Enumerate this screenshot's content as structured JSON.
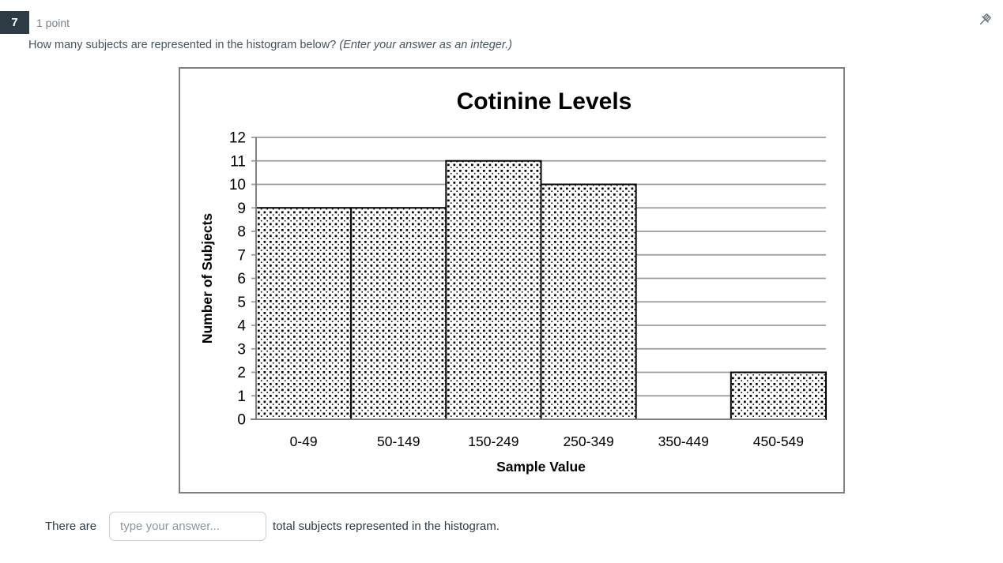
{
  "header": {
    "question_number": "7",
    "points_label": "1 point",
    "pin_icon": "pushpin"
  },
  "question": {
    "text": "How many subjects are represented in the histogram below?",
    "note": "(Enter your answer as an integer.)"
  },
  "chart_data": {
    "type": "bar",
    "subtype": "histogram",
    "title": "Cotinine Levels",
    "categories": [
      "0-49",
      "50-149",
      "150-249",
      "250-349",
      "350-449",
      "450-549"
    ],
    "values": [
      9,
      9,
      11,
      10,
      0,
      2
    ],
    "xlabel": "Sample Value",
    "ylabel": "Number of Subjects",
    "ylim": [
      0,
      12
    ],
    "ytick_step": 1,
    "grid": "horizontal",
    "legend": "none",
    "bar_fill": "black dot pattern on white",
    "bars_touching": true
  },
  "answer": {
    "prefix": "There are",
    "input_placeholder": "type your answer...",
    "input_value": "",
    "suffix": "total subjects represented in the histogram."
  },
  "colors": {
    "question_badge_bg": "#2D3B45",
    "question_badge_text": "#FFFFFF",
    "muted_text": "#73818C",
    "question_text": "#44545E",
    "pin_icon": "#5F6E7C",
    "chart_border": "#808080",
    "grid_line": "#9B9B9B",
    "axis_line": "#808080",
    "bar_stroke": "#000000",
    "bar_dot": "#000000",
    "chart_text": "#000000",
    "input_border": "#C7CDD1",
    "placeholder_text": "#8B969E"
  }
}
